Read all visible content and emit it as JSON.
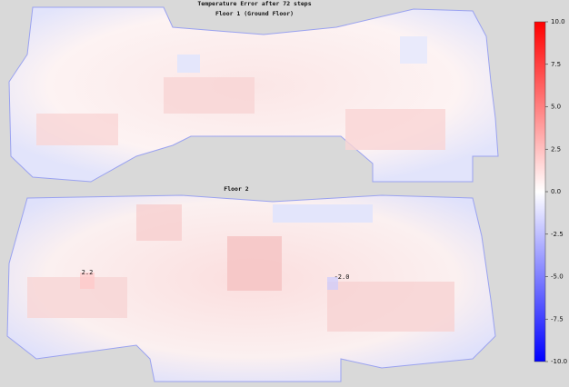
{
  "chart_data": {
    "type": "heatmap",
    "title": "Temperature Error after 72 steps",
    "panels": [
      {
        "title": "Floor 1 (Ground Floor)"
      },
      {
        "title": "Floor 2",
        "annotations": {
          "values": [
            2.2,
            -2.0
          ],
          "value_labels": [
            "2.2",
            "-2.0"
          ]
        }
      }
    ],
    "colormap": "bwr",
    "clim": [
      -10,
      10
    ],
    "cticks": [
      {
        "value": -10,
        "label": "-10.0"
      },
      {
        "value": -7.5,
        "label": "-7.5"
      },
      {
        "value": -5,
        "label": "-5.0"
      },
      {
        "value": -2.5,
        "label": "-2.5"
      },
      {
        "value": 0,
        "label": "0.0"
      },
      {
        "value": 2.5,
        "label": "2.5"
      },
      {
        "value": 5,
        "label": "5.0"
      },
      {
        "value": 7.5,
        "label": "7.5"
      },
      {
        "value": 10,
        "label": "10.0"
      }
    ]
  }
}
